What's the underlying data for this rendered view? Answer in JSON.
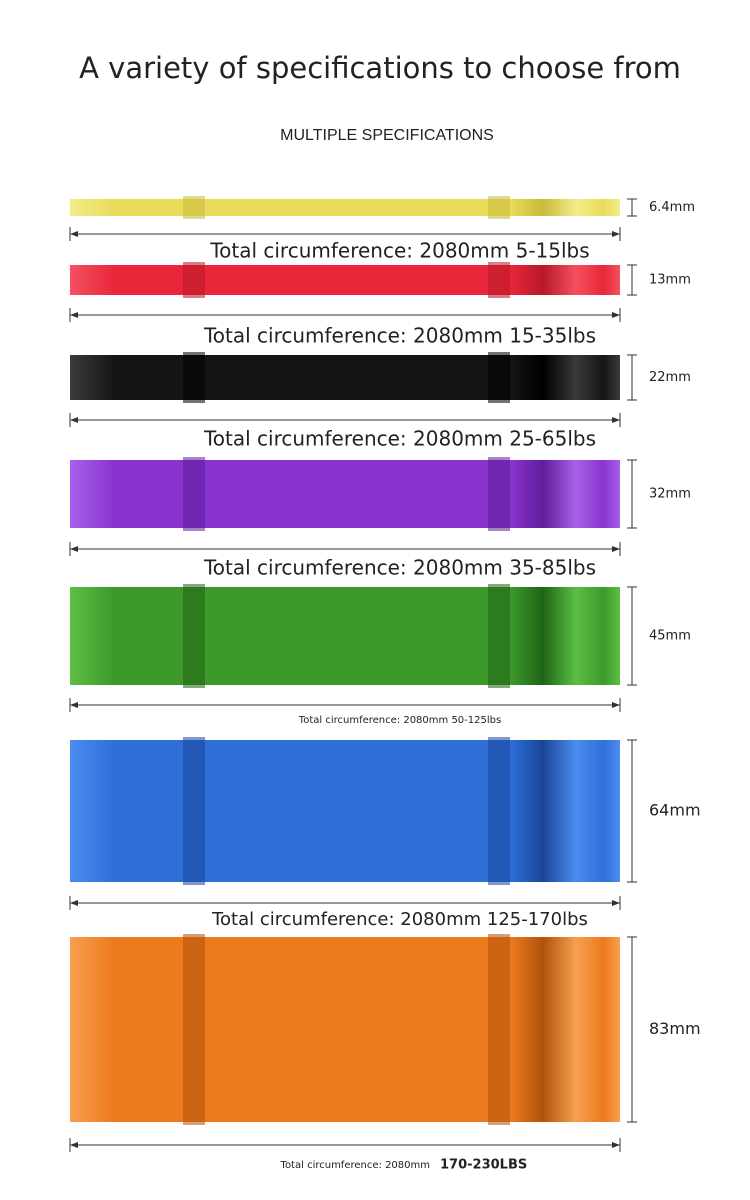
{
  "header": {
    "title": "A variety of specifications to choose from",
    "subtitle": "MULTIPLE SPECIFICATIONS"
  },
  "bands": [
    {
      "width": "6.4mm",
      "circumference": "Total circumference: 2080mm 5-15lbs"
    },
    {
      "width": "13mm",
      "circumference": "Total circumference: 2080mm 15-35lbs"
    },
    {
      "width": "22mm",
      "circumference": "Total circumference: 2080mm 25-65lbs"
    },
    {
      "width": "32mm",
      "circumference": "Total circumference: 2080mm 35-85lbs"
    },
    {
      "width": "45mm",
      "circumference": "Total circumference: 2080mm 50-125lbs"
    },
    {
      "width": "64mm",
      "circumference": "Total circumference: 2080mm 125-170lbs"
    },
    {
      "width": "83mm",
      "circumference": "Total circumference: 2080mm",
      "resistance": "170-230LBS"
    }
  ]
}
